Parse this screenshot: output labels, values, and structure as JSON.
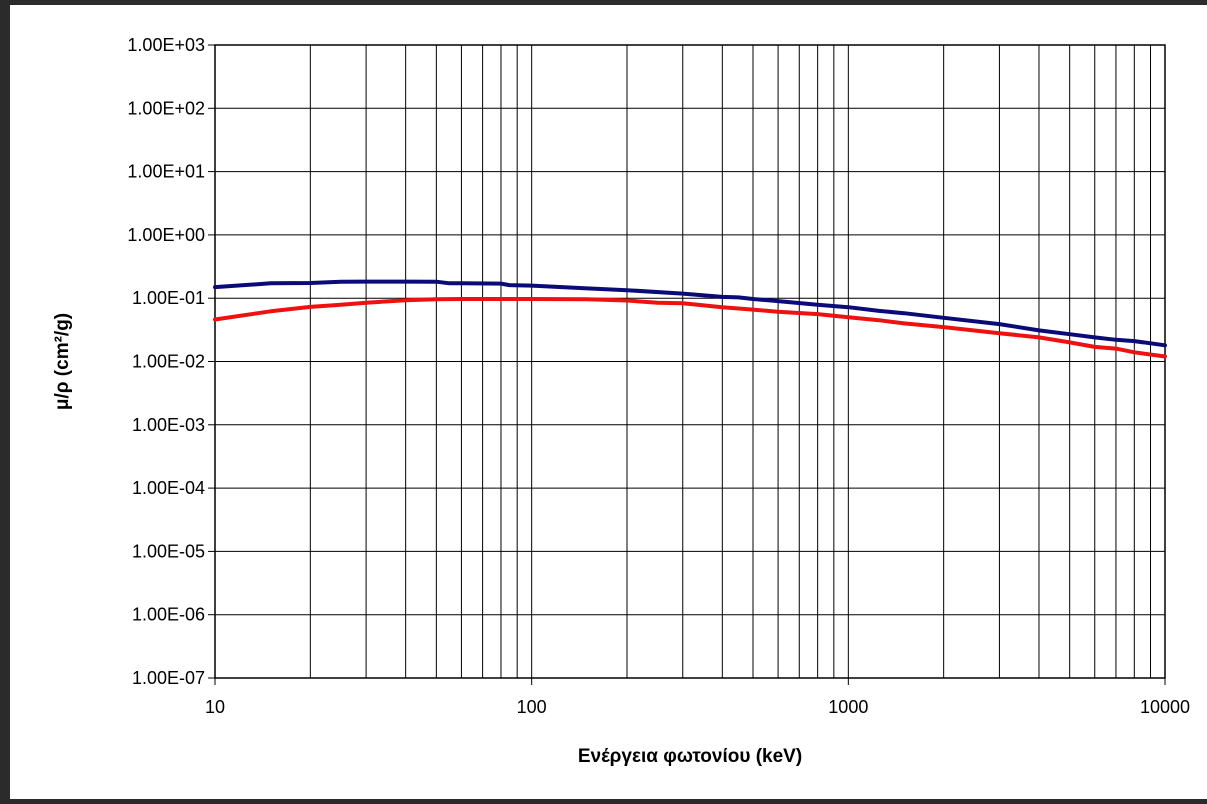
{
  "chart_data": {
    "type": "line",
    "xlabel": "Ενέργεια φωτονίου (keV)",
    "ylabel": "μ/ρ (cm²/g)",
    "xscale": "log",
    "yscale": "log",
    "xlim": [
      10,
      10000
    ],
    "ylim": [
      1e-07,
      1000
    ],
    "grid": true,
    "legend": "none",
    "x_tick_labels": [
      "10",
      "100",
      "1000",
      "10000"
    ],
    "y_tick_labels": [
      "1.00E-07",
      "1.00E-06",
      "1.00E-05",
      "1.00E-04",
      "1.00E-03",
      "1.00E-02",
      "1.00E-01",
      "1.00E+00",
      "1.00E+01",
      "1.00E+02",
      "1.00E+03"
    ],
    "series": [
      {
        "color": "#0a0a78",
        "x": [
          10,
          15,
          20,
          25,
          30,
          40,
          50,
          55,
          60,
          80,
          85,
          100,
          150,
          200,
          300,
          400,
          450,
          500,
          600,
          800,
          1000,
          1250,
          1500,
          2000,
          3000,
          4000,
          5000,
          6000,
          7000,
          8000,
          10000
        ],
        "y": [
          0.15,
          0.172,
          0.174,
          0.182,
          0.183,
          0.183,
          0.182,
          0.172,
          0.172,
          0.17,
          0.161,
          0.158,
          0.143,
          0.134,
          0.118,
          0.105,
          0.103,
          0.097,
          0.09,
          0.079,
          0.072,
          0.063,
          0.058,
          0.049,
          0.039,
          0.031,
          0.027,
          0.024,
          0.022,
          0.021,
          0.018
        ]
      },
      {
        "color": "#ee1111",
        "x": [
          10,
          15,
          20,
          25,
          30,
          40,
          50,
          60,
          80,
          100,
          150,
          200,
          250,
          300,
          400,
          500,
          600,
          800,
          1000,
          1250,
          1500,
          2000,
          3000,
          4000,
          5000,
          6000,
          7000,
          8000,
          10000
        ],
        "y": [
          0.046,
          0.062,
          0.073,
          0.079,
          0.085,
          0.093,
          0.096,
          0.097,
          0.097,
          0.097,
          0.096,
          0.092,
          0.085,
          0.083,
          0.072,
          0.066,
          0.061,
          0.056,
          0.05,
          0.045,
          0.04,
          0.035,
          0.028,
          0.024,
          0.02,
          0.017,
          0.016,
          0.014,
          0.012
        ]
      }
    ]
  }
}
